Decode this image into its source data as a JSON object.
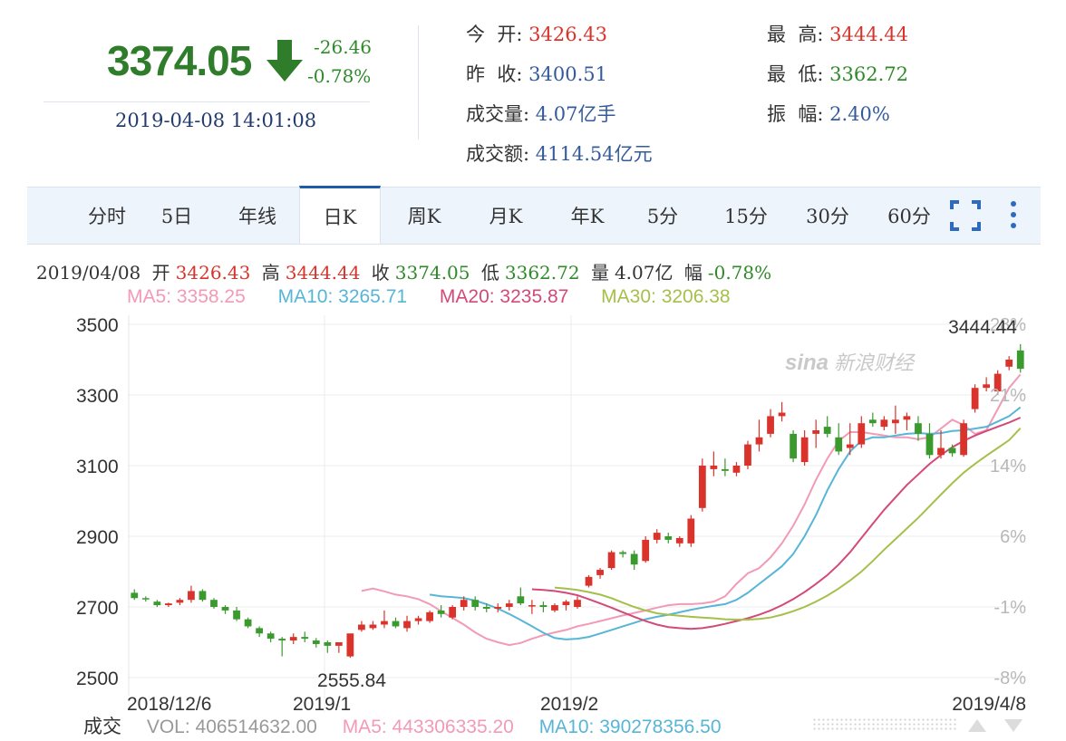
{
  "quote": {
    "price": "3374.05",
    "change": "-26.46",
    "change_pct": "-0.78%",
    "datetime": "2019-04-08 14:01:08",
    "open_label": "今  开:",
    "open": "3426.43",
    "prev_label": "昨  收:",
    "prev": "3400.51",
    "vol_label": "成交量:",
    "vol": "4.07亿手",
    "amt_label": "成交额:",
    "amt": "4114.54亿元",
    "high_label": "最  高:",
    "high": "3444.44",
    "low_label": "最  低:",
    "low": "3362.72",
    "amp_label": "振  幅:",
    "amp": "2.40%"
  },
  "tabs": [
    "分时",
    "5日",
    "年线",
    "日K",
    "周K",
    "月K",
    "年K",
    "5分",
    "15分",
    "30分",
    "60分"
  ],
  "active_tab": "日K",
  "info": {
    "date": "2019/04/08",
    "open_l": "开",
    "open": "3426.43",
    "high_l": "高",
    "high": "3444.44",
    "close_l": "收",
    "close": "3374.05",
    "low_l": "低",
    "low": "3362.72",
    "vol_l": "量",
    "vol": "4.07亿",
    "amp_l": "幅",
    "amp": "-0.78%"
  },
  "ma": {
    "ma5": "MA5: 3358.25",
    "ma10": "MA10: 3265.71",
    "ma20": "MA20: 3235.87",
    "ma30": "MA30: 3206.38"
  },
  "volume_row": {
    "label": "成交",
    "vol": "VOL: 406514632.00",
    "ma5": "MA5: 443306335.20",
    "ma10": "MA10: 390278356.50"
  },
  "watermark": "新浪财经",
  "colors": {
    "up": "#d9332b",
    "down": "#3a9a2e",
    "ma5": "#f29ab6",
    "ma10": "#57b5d6",
    "ma20": "#d34a78",
    "ma30": "#a5c04a"
  },
  "chart_data": {
    "type": "candlestick",
    "y_ticks": [
      3500,
      3300,
      3100,
      2900,
      2700,
      2500
    ],
    "y_range": [
      2500,
      3500
    ],
    "pct_ticks": [
      "28%",
      "21%",
      "14%",
      "6%",
      "-1%",
      "-8%"
    ],
    "x_labels": [
      "2018/12/6",
      "2019/1",
      "2019/2",
      "2019/4/8"
    ],
    "max_label": "3444.44",
    "min_label": "2555.84",
    "grid": true,
    "candles": [
      [
        2740,
        2750,
        2720,
        2725
      ],
      [
        2725,
        2730,
        2715,
        2722
      ],
      [
        2715,
        2720,
        2700,
        2705
      ],
      [
        2705,
        2712,
        2700,
        2710
      ],
      [
        2712,
        2725,
        2705,
        2720
      ],
      [
        2720,
        2760,
        2712,
        2745
      ],
      [
        2745,
        2750,
        2715,
        2720
      ],
      [
        2720,
        2725,
        2695,
        2700
      ],
      [
        2700,
        2705,
        2680,
        2690
      ],
      [
        2690,
        2700,
        2660,
        2665
      ],
      [
        2665,
        2670,
        2640,
        2645
      ],
      [
        2640,
        2645,
        2615,
        2625
      ],
      [
        2625,
        2630,
        2600,
        2610
      ],
      [
        2610,
        2615,
        2560,
        2605
      ],
      [
        2605,
        2625,
        2595,
        2615
      ],
      [
        2615,
        2630,
        2600,
        2610
      ],
      [
        2605,
        2612,
        2585,
        2595
      ],
      [
        2600,
        2605,
        2570,
        2590
      ],
      [
        2590,
        2600,
        2570,
        2600
      ],
      [
        2560,
        2620,
        2556,
        2625
      ],
      [
        2635,
        2660,
        2630,
        2650
      ],
      [
        2640,
        2660,
        2635,
        2650
      ],
      [
        2650,
        2690,
        2640,
        2660
      ],
      [
        2660,
        2670,
        2640,
        2645
      ],
      [
        2640,
        2675,
        2630,
        2660
      ],
      [
        2660,
        2675,
        2650,
        2668
      ],
      [
        2660,
        2690,
        2655,
        2685
      ],
      [
        2690,
        2705,
        2670,
        2680
      ],
      [
        2670,
        2705,
        2665,
        2700
      ],
      [
        2700,
        2730,
        2690,
        2720
      ],
      [
        2720,
        2730,
        2690,
        2700
      ],
      [
        2700,
        2710,
        2685,
        2695
      ],
      [
        2695,
        2710,
        2685,
        2700
      ],
      [
        2700,
        2720,
        2690,
        2710
      ],
      [
        2730,
        2755,
        2705,
        2710
      ],
      [
        2705,
        2720,
        2680,
        2705
      ],
      [
        2705,
        2715,
        2685,
        2700
      ],
      [
        2690,
        2710,
        2685,
        2705
      ],
      [
        2705,
        2720,
        2690,
        2715
      ],
      [
        2700,
        2730,
        2695,
        2720
      ],
      [
        2760,
        2790,
        2755,
        2785
      ],
      [
        2790,
        2810,
        2780,
        2805
      ],
      [
        2810,
        2860,
        2805,
        2855
      ],
      [
        2855,
        2860,
        2840,
        2850
      ],
      [
        2850,
        2860,
        2805,
        2820
      ],
      [
        2830,
        2900,
        2825,
        2890
      ],
      [
        2890,
        2920,
        2880,
        2910
      ],
      [
        2900,
        2910,
        2880,
        2890
      ],
      [
        2880,
        2900,
        2870,
        2895
      ],
      [
        2880,
        2960,
        2870,
        2950
      ],
      [
        2980,
        3120,
        2970,
        3100
      ],
      [
        3090,
        3140,
        3070,
        3100
      ],
      [
        3090,
        3120,
        3070,
        3085
      ],
      [
        3080,
        3110,
        3070,
        3100
      ],
      [
        3100,
        3170,
        3090,
        3160
      ],
      [
        3160,
        3230,
        3140,
        3180
      ],
      [
        3190,
        3260,
        3180,
        3240
      ],
      [
        3240,
        3280,
        3225,
        3250
      ],
      [
        3190,
        3200,
        3110,
        3120
      ],
      [
        3110,
        3200,
        3100,
        3180
      ],
      [
        3190,
        3230,
        3150,
        3200
      ],
      [
        3210,
        3240,
        3180,
        3190
      ],
      [
        3180,
        3220,
        3130,
        3140
      ],
      [
        3150,
        3220,
        3130,
        3160
      ],
      [
        3160,
        3240,
        3150,
        3220
      ],
      [
        3230,
        3250,
        3210,
        3220
      ],
      [
        3210,
        3240,
        3200,
        3230
      ],
      [
        3220,
        3270,
        3190,
        3230
      ],
      [
        3230,
        3250,
        3200,
        3240
      ],
      [
        3220,
        3240,
        3170,
        3190
      ],
      [
        3190,
        3220,
        3120,
        3130
      ],
      [
        3130,
        3200,
        3120,
        3150
      ],
      [
        3150,
        3160,
        3125,
        3135
      ],
      [
        3130,
        3230,
        3125,
        3220
      ],
      [
        3260,
        3330,
        3250,
        3320
      ],
      [
        3320,
        3350,
        3310,
        3330
      ],
      [
        3310,
        3370,
        3300,
        3360
      ],
      [
        3380,
        3410,
        3370,
        3400
      ],
      [
        3426,
        3444,
        3363,
        3374
      ]
    ],
    "ma_series": {
      "ma5": [
        2745,
        2752,
        2744,
        2735,
        2730,
        2722,
        2708,
        2688,
        2669,
        2650,
        2628,
        2610,
        2600,
        2592,
        2598,
        2610,
        2620,
        2628,
        2635,
        2645,
        2652,
        2660,
        2668,
        2676,
        2683,
        2690,
        2698,
        2705,
        2708,
        2708,
        2710,
        2715,
        2730,
        2765,
        2795,
        2810,
        2840,
        2880,
        2930,
        2990,
        3060,
        3120,
        3170,
        3195,
        3195,
        3190,
        3185,
        3180,
        3180,
        3175,
        3180,
        3205,
        3230,
        3215,
        3190,
        3200,
        3260,
        3320,
        3358
      ],
      "ma10": [
        2735,
        2730,
        2728,
        2725,
        2718,
        2708,
        2695,
        2680,
        2663,
        2645,
        2627,
        2612,
        2608,
        2610,
        2615,
        2625,
        2635,
        2645,
        2655,
        2665,
        2672,
        2678,
        2685,
        2692,
        2698,
        2703,
        2708,
        2720,
        2740,
        2765,
        2790,
        2815,
        2850,
        2900,
        2960,
        3030,
        3090,
        3140,
        3170,
        3180,
        3180,
        3185,
        3190,
        3192,
        3190,
        3192,
        3198,
        3200,
        3205,
        3210,
        3225,
        3240,
        3265
      ],
      "ma20": [
        2750,
        2748,
        2745,
        2740,
        2733,
        2722,
        2710,
        2698,
        2685,
        2672,
        2660,
        2650,
        2643,
        2640,
        2638,
        2640,
        2645,
        2652,
        2660,
        2668,
        2678,
        2690,
        2705,
        2722,
        2742,
        2765,
        2790,
        2820,
        2855,
        2895,
        2935,
        2975,
        3010,
        3045,
        3075,
        3105,
        3130,
        3152,
        3170,
        3185,
        3198,
        3210,
        3222,
        3236
      ],
      "ma30": [
        2755,
        2752,
        2748,
        2742,
        2735,
        2725,
        2712,
        2700,
        2690,
        2682,
        2678,
        2675,
        2672,
        2670,
        2668,
        2665,
        2664,
        2664,
        2666,
        2670,
        2678,
        2688,
        2700,
        2715,
        2732,
        2752,
        2775,
        2800,
        2830,
        2862,
        2892,
        2922,
        2952,
        2985,
        3018,
        3050,
        3080,
        3105,
        3128,
        3150,
        3172,
        3206
      ]
    }
  }
}
